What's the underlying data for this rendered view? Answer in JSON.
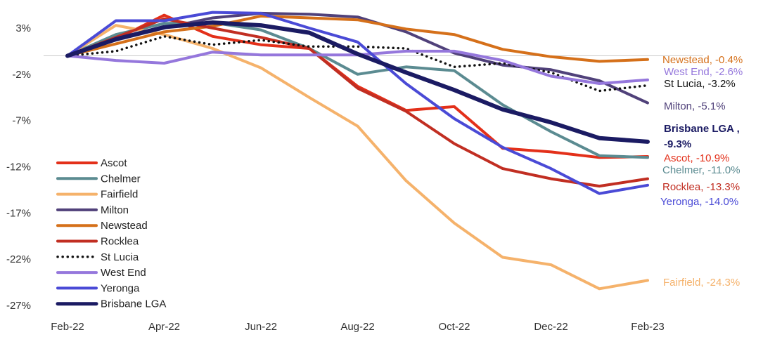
{
  "chart_data": {
    "type": "line",
    "x": [
      "Feb-22",
      "Mar-22",
      "Apr-22",
      "May-22",
      "Jun-22",
      "Jul-22",
      "Aug-22",
      "Sep-22",
      "Oct-22",
      "Nov-22",
      "Dec-22",
      "Jan-23",
      "Feb-23"
    ],
    "x_tick_labels": [
      "Feb-22",
      "Apr-22",
      "Jun-22",
      "Aug-22",
      "Oct-22",
      "Dec-22",
      "Feb-23"
    ],
    "y_tick_values": [
      3,
      -2,
      -7,
      -12,
      -17,
      -22,
      -27
    ],
    "y_tick_labels": [
      "3%",
      "-2%",
      "-7%",
      "-12%",
      "-17%",
      "-22%",
      "-27%"
    ],
    "ylim": [
      -28.5,
      6
    ],
    "legend_position": "left",
    "grid": false,
    "zero_line": true,
    "series": [
      {
        "name": "Ascot",
        "color": "#e3301a",
        "width": 4,
        "dash": false,
        "values": [
          0,
          1.8,
          4.4,
          2.1,
          1.2,
          0.8,
          -3.3,
          -5.9,
          -5.5,
          -10.0,
          -10.4,
          -11.0,
          -10.9
        ],
        "end_label": "Ascot, -10.9%"
      },
      {
        "name": "Chelmer",
        "color": "#5b8b91",
        "width": 4,
        "dash": false,
        "values": [
          0,
          2.3,
          3.5,
          3.6,
          2.8,
          0.8,
          -2.0,
          -1.2,
          -1.6,
          -5.3,
          -8.2,
          -10.8,
          -11.0
        ],
        "end_label": "Chelmer, -11.0%"
      },
      {
        "name": "Fairfield",
        "color": "#f5b26b",
        "width": 4,
        "dash": false,
        "values": [
          0,
          3.3,
          2.3,
          0.8,
          -1.3,
          -4.5,
          -7.6,
          -13.5,
          -18.1,
          -21.8,
          -22.6,
          -25.2,
          -24.3
        ],
        "end_label": "Fairfield, -24.3%"
      },
      {
        "name": "Milton",
        "color": "#50417a",
        "width": 4,
        "dash": false,
        "values": [
          0,
          1.7,
          3.0,
          4.1,
          4.6,
          4.5,
          4.2,
          2.6,
          0.3,
          -1.0,
          -1.5,
          -2.7,
          -5.1
        ],
        "end_label": "Milton, -5.1%"
      },
      {
        "name": "Newstead",
        "color": "#d5701a",
        "width": 4,
        "dash": false,
        "values": [
          0,
          1.3,
          2.6,
          3.2,
          4.3,
          4.1,
          3.9,
          2.9,
          2.3,
          0.7,
          -0.1,
          -0.6,
          -0.4
        ],
        "end_label": "Newstead, -0.4%"
      },
      {
        "name": "Rocklea",
        "color": "#c12e22",
        "width": 4,
        "dash": false,
        "values": [
          0,
          2.0,
          4.0,
          3.0,
          2.0,
          0.8,
          -3.5,
          -6.0,
          -9.5,
          -12.2,
          -13.3,
          -14.1,
          -13.3
        ],
        "end_label": "Rocklea, -13.3%"
      },
      {
        "name": "St Lucia",
        "color": "#111111",
        "width": 3,
        "dash": true,
        "values": [
          0,
          0.5,
          2.1,
          1.2,
          1.7,
          1.0,
          1.0,
          0.8,
          -1.2,
          -0.8,
          -1.8,
          -3.8,
          -3.2
        ],
        "end_label": "St Lucia, -3.2%"
      },
      {
        "name": "West End",
        "color": "#9577dc",
        "width": 4,
        "dash": false,
        "values": [
          0,
          -0.5,
          -0.8,
          0.4,
          0.1,
          0.1,
          0.1,
          0.5,
          0.5,
          -0.5,
          -2.2,
          -3.0,
          -2.6
        ],
        "end_label": "West End, -2.6%"
      },
      {
        "name": "Yeronga",
        "color": "#4a4ad6",
        "width": 4,
        "dash": false,
        "values": [
          0,
          3.8,
          3.8,
          4.7,
          4.6,
          3.0,
          1.5,
          -3.0,
          -6.8,
          -9.9,
          -12.2,
          -14.9,
          -14.0
        ],
        "end_label": "Yeronga, -14.0%"
      },
      {
        "name": "Brisbane LGA",
        "color": "#1b1b63",
        "width": 6,
        "dash": false,
        "values": [
          0,
          1.8,
          3.1,
          3.6,
          3.3,
          2.5,
          0.2,
          -1.8,
          -3.7,
          -5.8,
          -7.2,
          -8.9,
          -9.3
        ],
        "end_label": "Brisbane LGA ,\n-9.3%",
        "end_label_bold": true
      }
    ]
  }
}
